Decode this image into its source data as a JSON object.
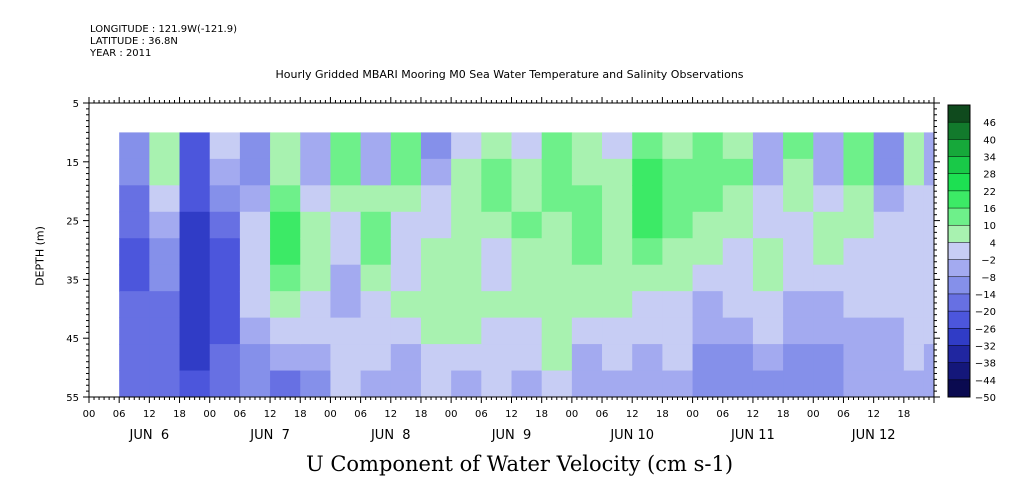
{
  "header": {
    "longitude": "LONGITUDE : 121.9W(-121.9)",
    "latitude": "LATITUDE : 36.8N",
    "year": "YEAR : 2011"
  },
  "chart_data": {
    "type": "heatmap",
    "title": "U Component of Water Velocity (cm s-1)",
    "subtitle": "Hourly Gridded MBARI Mooring M0 Sea Water Temperature and Salinity Observations",
    "xlabel": "",
    "ylabel": "DEPTH (m)",
    "x_ticks_hours": [
      "00",
      "06",
      "12",
      "18",
      "00",
      "06",
      "12",
      "18",
      "00",
      "06",
      "12",
      "18",
      "00",
      "06",
      "12",
      "18",
      "00",
      "06",
      "12",
      "18",
      "00",
      "06",
      "12",
      "18",
      "00",
      "06",
      "12",
      "18"
    ],
    "x_day_labels": [
      "JUN  6",
      "JUN  7",
      "JUN  8",
      "JUN  9",
      "JUN 10",
      "JUN 11",
      "JUN 12"
    ],
    "xlim_hours": [
      0,
      168
    ],
    "data_start_hour": 6,
    "y_ticks": [
      5,
      15,
      25,
      35,
      45,
      55
    ],
    "ylim": [
      5,
      55
    ],
    "y_axis_inverted": true,
    "data_depth_range": [
      10,
      55
    ],
    "colorbar": {
      "levels": [
        46,
        40,
        34,
        28,
        22,
        16,
        10,
        4,
        -2,
        -8,
        -14,
        -20,
        -26,
        -32,
        -38,
        -44,
        -50
      ],
      "colors": [
        "#0f4a1d",
        "#127a2c",
        "#16a83a",
        "#19c948",
        "#1de052",
        "#3cea66",
        "#6ef08a",
        "#a8f2b0",
        "#c7cdf4",
        "#a3aaf0",
        "#8590ea",
        "#6770e3",
        "#4c56dc",
        "#303cc6",
        "#2026a0",
        "#14177a",
        "#0a0a50"
      ]
    },
    "columns_6h": [
      {
        "hour": 6,
        "profile": [
          -8,
          -10,
          -14,
          -18,
          -20,
          -20,
          -18,
          -16,
          -14,
          -14
        ]
      },
      {
        "hour": 12,
        "profile": [
          10,
          8,
          2,
          -4,
          -8,
          -12,
          -16,
          -18,
          -18,
          -16
        ]
      },
      {
        "hour": 18,
        "profile": [
          -20,
          -22,
          -24,
          -26,
          -28,
          -30,
          -30,
          -28,
          -26,
          -22
        ]
      },
      {
        "hour": 24,
        "profile": [
          4,
          -4,
          -10,
          -16,
          -20,
          -22,
          -22,
          -20,
          -18,
          -14
        ]
      },
      {
        "hour": 30,
        "profile": [
          -10,
          -8,
          -4,
          0,
          2,
          4,
          4,
          -2,
          -8,
          -12
        ]
      },
      {
        "hour": 36,
        "profile": [
          8,
          10,
          16,
          22,
          22,
          16,
          10,
          4,
          -4,
          -14
        ]
      },
      {
        "hour": 42,
        "profile": [
          -4,
          -2,
          4,
          8,
          10,
          8,
          4,
          0,
          -6,
          -10
        ]
      },
      {
        "hour": 48,
        "profile": [
          16,
          14,
          10,
          4,
          0,
          -4,
          -2,
          2,
          4,
          0
        ]
      },
      {
        "hour": 54,
        "profile": [
          -6,
          -2,
          8,
          14,
          12,
          8,
          4,
          2,
          0,
          -2
        ]
      },
      {
        "hour": 60,
        "profile": [
          12,
          16,
          10,
          4,
          2,
          4,
          6,
          2,
          -2,
          -6
        ]
      },
      {
        "hour": 66,
        "profile": [
          -8,
          -6,
          0,
          4,
          8,
          10,
          8,
          6,
          4,
          0
        ]
      },
      {
        "hour": 72,
        "profile": [
          4,
          8,
          10,
          8,
          6,
          8,
          10,
          8,
          4,
          -2
        ]
      },
      {
        "hour": 78,
        "profile": [
          10,
          14,
          12,
          8,
          4,
          4,
          6,
          4,
          2,
          0
        ]
      },
      {
        "hour": 84,
        "profile": [
          2,
          6,
          10,
          12,
          10,
          8,
          6,
          4,
          2,
          -2
        ]
      },
      {
        "hour": 90,
        "profile": [
          12,
          16,
          14,
          10,
          8,
          6,
          6,
          8,
          6,
          2
        ]
      },
      {
        "hour": 96,
        "profile": [
          6,
          8,
          12,
          14,
          12,
          10,
          8,
          4,
          -2,
          -6
        ]
      },
      {
        "hour": 102,
        "profile": [
          4,
          6,
          8,
          10,
          10,
          8,
          6,
          4,
          2,
          -4
        ]
      },
      {
        "hour": 108,
        "profile": [
          16,
          20,
          22,
          18,
          12,
          8,
          4,
          2,
          -2,
          -6
        ]
      },
      {
        "hour": 114,
        "profile": [
          8,
          12,
          14,
          12,
          8,
          6,
          4,
          2,
          0,
          -4
        ]
      },
      {
        "hour": 120,
        "profile": [
          14,
          16,
          14,
          10,
          6,
          2,
          -2,
          -6,
          -8,
          -10
        ]
      },
      {
        "hour": 126,
        "profile": [
          10,
          12,
          10,
          6,
          4,
          2,
          0,
          -4,
          -8,
          -10
        ]
      },
      {
        "hour": 132,
        "profile": [
          -6,
          -4,
          0,
          4,
          6,
          6,
          4,
          0,
          -4,
          -8
        ]
      },
      {
        "hour": 138,
        "profile": [
          12,
          10,
          6,
          4,
          2,
          0,
          -2,
          -6,
          -10,
          -12
        ]
      },
      {
        "hour": 144,
        "profile": [
          -4,
          -2,
          2,
          6,
          6,
          2,
          -2,
          -6,
          -8,
          -10
        ]
      },
      {
        "hour": 150,
        "profile": [
          16,
          14,
          10,
          6,
          4,
          2,
          0,
          -2,
          -4,
          -6
        ]
      },
      {
        "hour": 156,
        "profile": [
          -12,
          -8,
          -4,
          0,
          2,
          4,
          2,
          -2,
          -4,
          -6
        ]
      },
      {
        "hour": 162,
        "profile": [
          8,
          6,
          4,
          2,
          2,
          4,
          4,
          2,
          0,
          -2
        ]
      },
      {
        "hour": 166,
        "profile": [
          -4,
          -2,
          2,
          4,
          4,
          4,
          2,
          0,
          -2,
          -4
        ]
      }
    ]
  }
}
